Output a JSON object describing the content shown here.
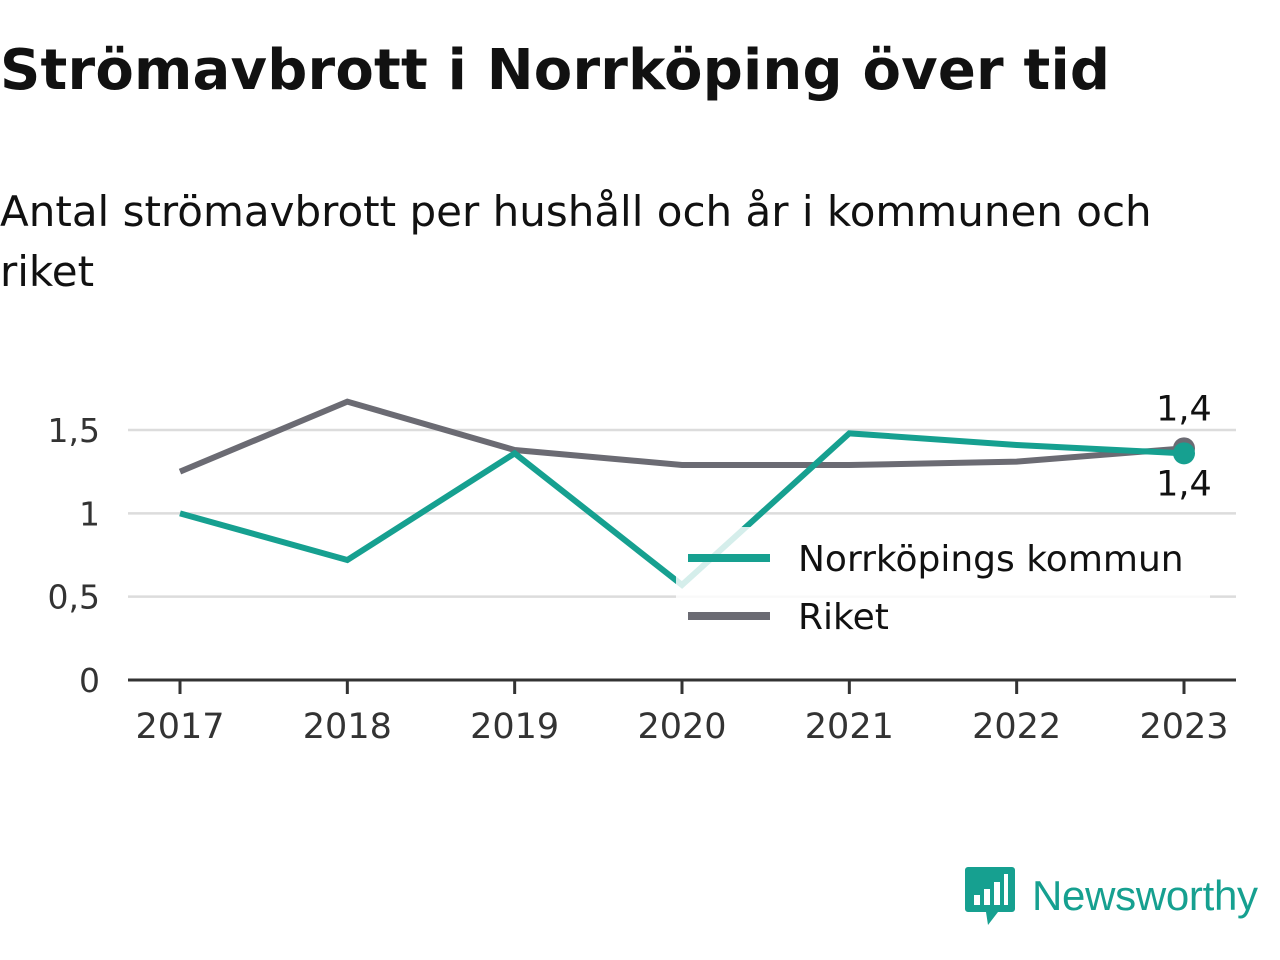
{
  "title": "Strömavbrott i Norrköping över tid",
  "subtitle": "Antal strömavbrott per hushåll och år i kommunen och riket",
  "brand": {
    "name": "Newsworthy",
    "icon": "newsworthy-logo-icon",
    "color": "#16a090"
  },
  "chart_data": {
    "type": "line",
    "title": "Strömavbrott i Norrköping över tid",
    "subtitle": "Antal strömavbrott per hushåll och år i kommunen och riket",
    "xlabel": "",
    "ylabel": "",
    "x": [
      "2017",
      "2018",
      "2019",
      "2020",
      "2021",
      "2022",
      "2023"
    ],
    "ylim": [
      0,
      1.5
    ],
    "yticks": [
      {
        "value": 0,
        "label": "0"
      },
      {
        "value": 0.5,
        "label": "0,5"
      },
      {
        "value": 1,
        "label": "1"
      },
      {
        "value": 1.5,
        "label": "1,5"
      }
    ],
    "grid": true,
    "legend_position": "lower-right",
    "series": [
      {
        "name": "Norrköpings kommun",
        "color": "#16a090",
        "values": [
          1.0,
          0.72,
          1.36,
          0.57,
          1.48,
          1.41,
          1.36
        ],
        "end_label": "1,4"
      },
      {
        "name": "Riket",
        "color": "#6b6b73",
        "values": [
          1.25,
          1.67,
          1.38,
          1.29,
          1.29,
          1.31,
          1.39
        ],
        "end_label": "1,4"
      }
    ]
  }
}
